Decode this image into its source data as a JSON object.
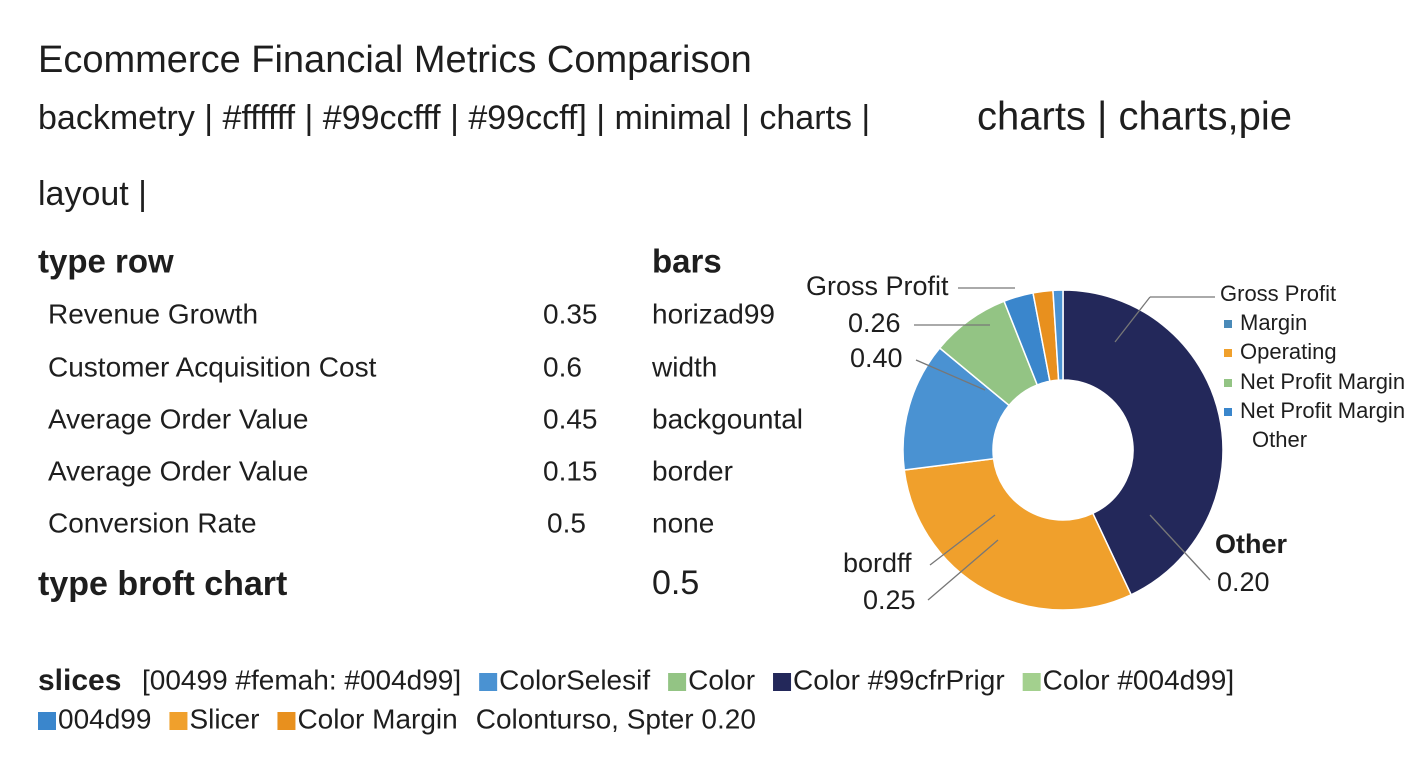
{
  "header": {
    "title": "Ecommerce Financial Metrics Comparison",
    "subtitle": [
      "backmetry | #ffffff | #99ccfff | #99ccff] | minimal | charts |",
      "charts | charts,pie"
    ],
    "section": "layout |"
  },
  "table": {
    "headers": [
      "type row",
      "bars"
    ],
    "rows": [
      [
        "Revenue Growth",
        0.35,
        "horizad99"
      ],
      [
        "Customer Acquisition Cost",
        0.6,
        "width"
      ],
      [
        "Average Order Value",
        0.45,
        "backgountal"
      ],
      [
        "Average Order Value",
        0.15,
        "border"
      ],
      [
        "Conversion Rate",
        0.5,
        "none"
      ]
    ],
    "footer": [
      "type broft chart",
      0.5
    ]
  },
  "donut": {
    "slices": [
      {
        "value": 43,
        "color": "#23285a"
      },
      {
        "value": 30,
        "color": "#f0a02c"
      },
      {
        "value": 13,
        "color": "#4a92d2"
      },
      {
        "value": 8,
        "color": "#93c484"
      },
      {
        "value": 3,
        "color": "#3a86cc"
      },
      {
        "value": 2,
        "color": "#e8901e"
      },
      {
        "value": 1,
        "color": "#4a92d2"
      }
    ],
    "labels": [
      "Gross Profit",
      "0.26",
      "0.40",
      "bordff",
      "0.25",
      "Other",
      "0.20"
    ]
  },
  "legend": {
    "items": [
      {
        "label": "Gross Profit"
      },
      {
        "label": "Margin",
        "color": "#4a8ab8"
      },
      {
        "label": "Operating",
        "color": "#f0a02c"
      },
      {
        "label": "Net Profit Margin",
        "color": "#93c484"
      },
      {
        "label": "Net Profit Margin",
        "color": "#3a86cc"
      },
      {
        "label": "Other"
      }
    ]
  },
  "slices": {
    "title": "slices",
    "rows": [
      [
        {
          "label": "[00499 #femah: #004d99]"
        },
        {
          "label": "ColorSelesif",
          "color": "#4a92d2"
        },
        {
          "label": "Color",
          "color": "#93c484"
        },
        {
          "label": "Color #99cfrPrigr",
          "color": "#23285a"
        },
        {
          "label": "Color #004d99]",
          "color": "#a3d08e"
        }
      ],
      [
        {
          "label": "004d99",
          "color": "#3a86cc"
        },
        {
          "label": "Slicer",
          "color": "#f0a02c"
        },
        {
          "label": "Color Margin",
          "color": "#e8901e"
        },
        {
          "label": "Colonturso, Spter 0.20"
        }
      ]
    ]
  }
}
